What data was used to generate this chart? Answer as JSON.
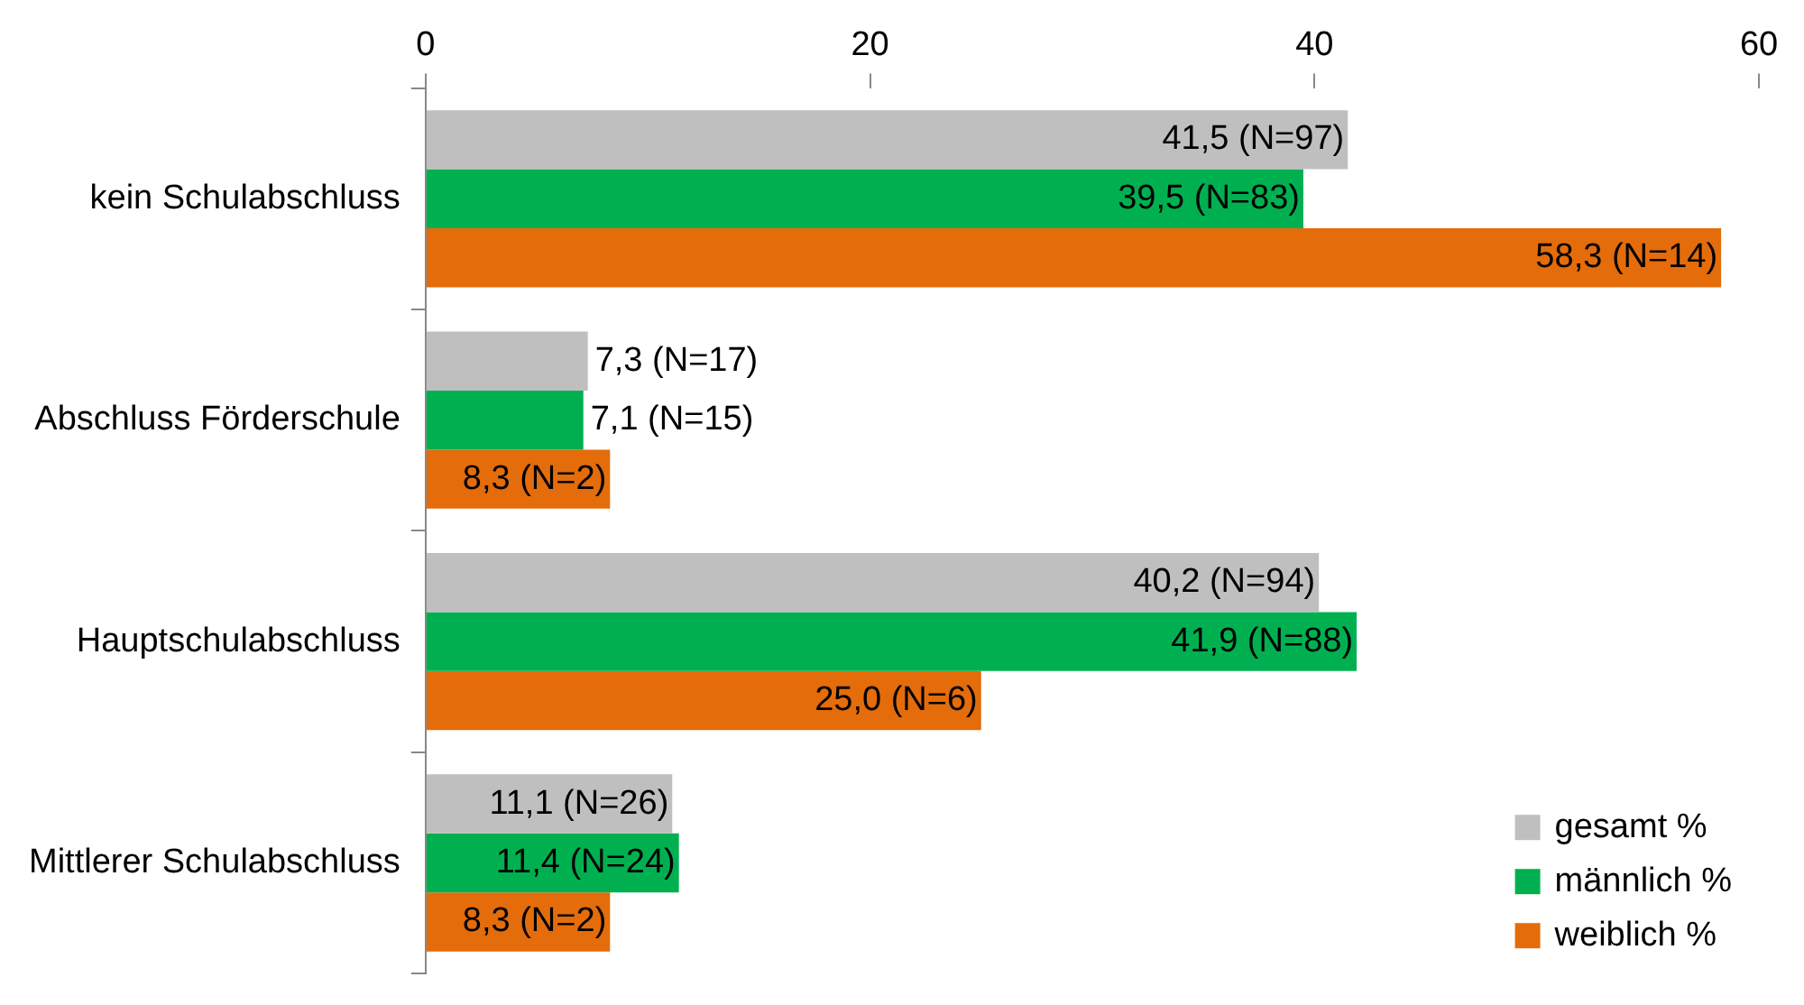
{
  "chart_data": {
    "type": "bar",
    "orientation": "horizontal",
    "categories": [
      "kein Schulabschluss",
      "Abschluss Förderschule",
      "Hauptschulabschluss",
      "Mittlerer Schulabschluss"
    ],
    "series": [
      {
        "name": "gesamt %",
        "color": "#bfbfbf",
        "values": [
          41.5,
          7.3,
          40.2,
          11.1
        ],
        "value_labels": [
          "41,5 (N=97)",
          "7,3 (N=17)",
          "40,2 (N=94)",
          "11,1 (N=26)"
        ]
      },
      {
        "name": "männlich %",
        "color": "#00b050",
        "values": [
          39.5,
          7.1,
          41.9,
          11.4
        ],
        "value_labels": [
          "39,5 (N=83)",
          "7,1 (N=15)",
          "41,9 (N=88)",
          "11,4 (N=24)"
        ]
      },
      {
        "name": "weiblich %",
        "color": "#e46c0a",
        "values": [
          58.3,
          8.3,
          25.0,
          8.3
        ],
        "value_labels": [
          "58,3 (N=14)",
          "8,3 (N=2)",
          "25,0 (N=6)",
          "8,3 (N=2)"
        ]
      }
    ],
    "xlim": [
      0,
      60
    ],
    "xticks": [
      0,
      20,
      40,
      60
    ],
    "grid": false,
    "legend": "bottom right"
  }
}
